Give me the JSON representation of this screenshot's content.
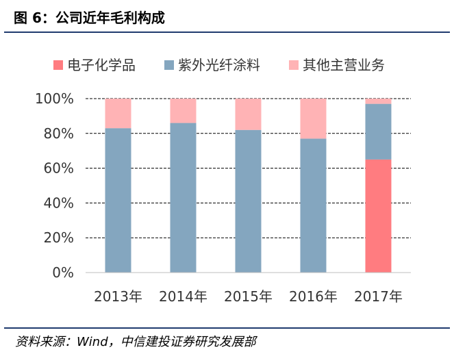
{
  "title": "图 6：公司近年毛利构成",
  "source": "资料来源：Wind，中信建投证券研究发展部",
  "chart_data": {
    "type": "bar",
    "stacked": true,
    "categories": [
      "2013年",
      "2014年",
      "2015年",
      "2016年",
      "2017年"
    ],
    "series": [
      {
        "name": "电子化学品",
        "color": "#ff7c80",
        "values": [
          0,
          0,
          0,
          0,
          65
        ]
      },
      {
        "name": "紫外光纤涂料",
        "color": "#84a6bf",
        "values": [
          83,
          86,
          82,
          77,
          32
        ]
      },
      {
        "name": "其他主营业务",
        "color": "#ffb3b5",
        "values": [
          17,
          14,
          18,
          23,
          3
        ]
      }
    ],
    "y_ticks": [
      "0%",
      "20%",
      "40%",
      "60%",
      "80%",
      "100%"
    ],
    "ylim": [
      0,
      100
    ],
    "legend_position": "top",
    "grid": "horizontal-dashed"
  }
}
